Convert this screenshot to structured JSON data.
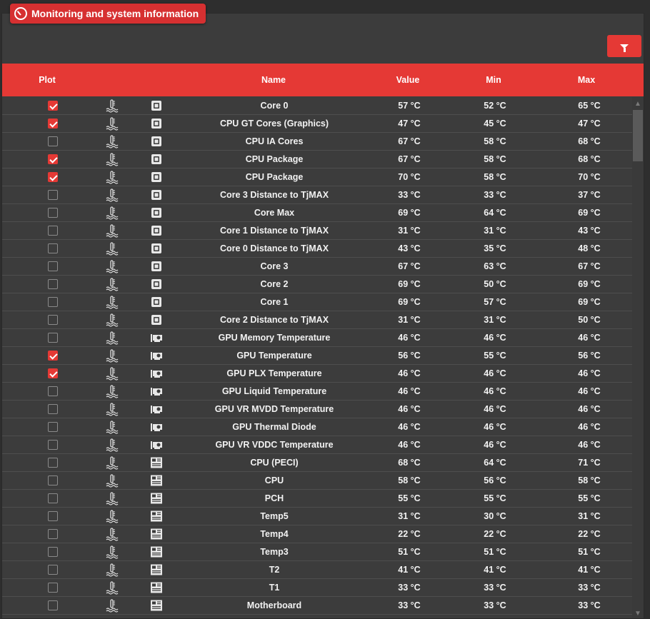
{
  "window": {
    "title": "Monitoring and system information"
  },
  "toolbar": {
    "filter_icon": "filter-icon"
  },
  "columns": {
    "plot": "Plot",
    "name": "Name",
    "value": "Value",
    "min": "Min",
    "max": "Max"
  },
  "colors": {
    "accent": "#e53935",
    "background": "#3c3c3c"
  },
  "rows": [
    {
      "plot": true,
      "icon": "cpu-chip",
      "name": "Core 0",
      "value": "57 °C",
      "min": "52 °C",
      "max": "65 °C"
    },
    {
      "plot": true,
      "icon": "cpu-chip",
      "name": "CPU GT Cores (Graphics)",
      "value": "47 °C",
      "min": "45 °C",
      "max": "47 °C"
    },
    {
      "plot": false,
      "icon": "cpu-chip",
      "name": "CPU IA Cores",
      "value": "67 °C",
      "min": "58 °C",
      "max": "68 °C"
    },
    {
      "plot": true,
      "icon": "cpu-chip",
      "name": "CPU Package",
      "value": "67 °C",
      "min": "58 °C",
      "max": "68 °C"
    },
    {
      "plot": true,
      "icon": "cpu-chip",
      "name": "CPU Package",
      "value": "70 °C",
      "min": "58 °C",
      "max": "70 °C"
    },
    {
      "plot": false,
      "icon": "cpu-chip",
      "name": "Core 3 Distance to TjMAX",
      "value": "33 °C",
      "min": "33 °C",
      "max": "37 °C"
    },
    {
      "plot": false,
      "icon": "cpu-chip",
      "name": "Core Max",
      "value": "69 °C",
      "min": "64 °C",
      "max": "69 °C"
    },
    {
      "plot": false,
      "icon": "cpu-chip",
      "name": "Core 1 Distance to TjMAX",
      "value": "31 °C",
      "min": "31 °C",
      "max": "43 °C"
    },
    {
      "plot": false,
      "icon": "cpu-chip",
      "name": "Core 0 Distance to TjMAX",
      "value": "43 °C",
      "min": "35 °C",
      "max": "48 °C"
    },
    {
      "plot": false,
      "icon": "cpu-chip",
      "name": "Core 3",
      "value": "67 °C",
      "min": "63 °C",
      "max": "67 °C"
    },
    {
      "plot": false,
      "icon": "cpu-chip",
      "name": "Core 2",
      "value": "69 °C",
      "min": "50 °C",
      "max": "69 °C"
    },
    {
      "plot": false,
      "icon": "cpu-chip",
      "name": "Core 1",
      "value": "69 °C",
      "min": "57 °C",
      "max": "69 °C"
    },
    {
      "plot": false,
      "icon": "cpu-chip",
      "name": "Core 2 Distance to TjMAX",
      "value": "31 °C",
      "min": "31 °C",
      "max": "50 °C"
    },
    {
      "plot": false,
      "icon": "gpu-card",
      "name": "GPU Memory Temperature",
      "value": "46 °C",
      "min": "46 °C",
      "max": "46 °C"
    },
    {
      "plot": true,
      "icon": "gpu-card",
      "name": "GPU Temperature",
      "value": "56 °C",
      "min": "55 °C",
      "max": "56 °C"
    },
    {
      "plot": true,
      "icon": "gpu-card",
      "name": "GPU PLX Temperature",
      "value": "46 °C",
      "min": "46 °C",
      "max": "46 °C"
    },
    {
      "plot": false,
      "icon": "gpu-card",
      "name": "GPU Liquid Temperature",
      "value": "46 °C",
      "min": "46 °C",
      "max": "46 °C"
    },
    {
      "plot": false,
      "icon": "gpu-card",
      "name": "GPU VR MVDD Temperature",
      "value": "46 °C",
      "min": "46 °C",
      "max": "46 °C"
    },
    {
      "plot": false,
      "icon": "gpu-card",
      "name": "GPU Thermal Diode",
      "value": "46 °C",
      "min": "46 °C",
      "max": "46 °C"
    },
    {
      "plot": false,
      "icon": "gpu-card",
      "name": "GPU VR VDDC Temperature",
      "value": "46 °C",
      "min": "46 °C",
      "max": "46 °C"
    },
    {
      "plot": false,
      "icon": "motherboard",
      "name": "CPU (PECI)",
      "value": "68 °C",
      "min": "64 °C",
      "max": "71 °C"
    },
    {
      "plot": false,
      "icon": "motherboard",
      "name": "CPU",
      "value": "58 °C",
      "min": "56 °C",
      "max": "58 °C"
    },
    {
      "plot": false,
      "icon": "motherboard",
      "name": "PCH",
      "value": "55 °C",
      "min": "55 °C",
      "max": "55 °C"
    },
    {
      "plot": false,
      "icon": "motherboard",
      "name": "Temp5",
      "value": "31 °C",
      "min": "30 °C",
      "max": "31 °C"
    },
    {
      "plot": false,
      "icon": "motherboard",
      "name": "Temp4",
      "value": "22 °C",
      "min": "22 °C",
      "max": "22 °C"
    },
    {
      "plot": false,
      "icon": "motherboard",
      "name": "Temp3",
      "value": "51 °C",
      "min": "51 °C",
      "max": "51 °C"
    },
    {
      "plot": false,
      "icon": "motherboard",
      "name": "T2",
      "value": "41 °C",
      "min": "41 °C",
      "max": "41 °C"
    },
    {
      "plot": false,
      "icon": "motherboard",
      "name": "T1",
      "value": "33 °C",
      "min": "33 °C",
      "max": "33 °C"
    },
    {
      "plot": false,
      "icon": "motherboard",
      "name": "Motherboard",
      "value": "33 °C",
      "min": "33 °C",
      "max": "33 °C"
    }
  ]
}
